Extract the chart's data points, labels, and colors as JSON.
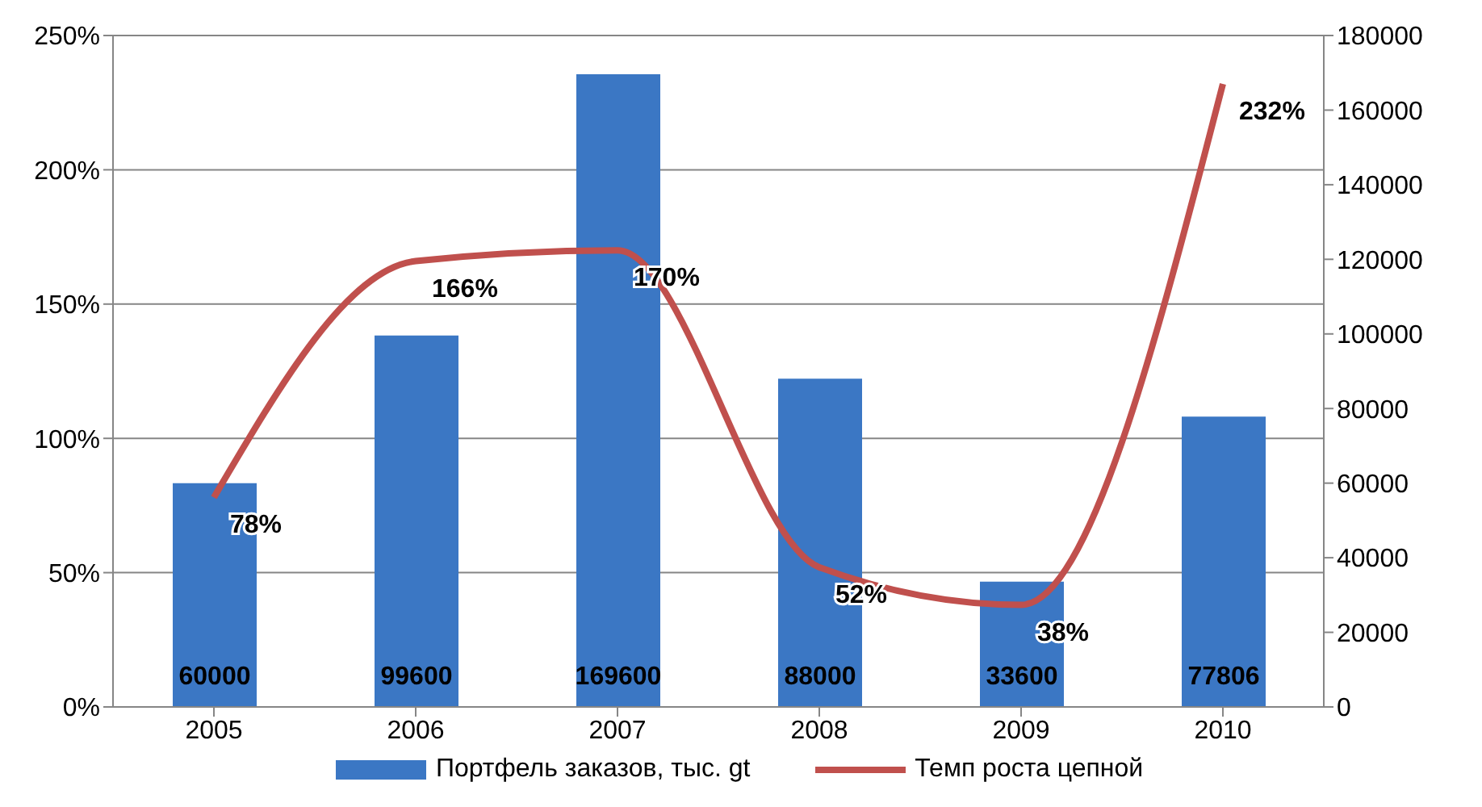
{
  "chart_data": {
    "type": "bar",
    "categories": [
      "2005",
      "2006",
      "2007",
      "2008",
      "2009",
      "2010"
    ],
    "series": [
      {
        "name": "Портфель заказов, тыс. gt",
        "color": "#3b77c4",
        "axis": "y2",
        "values": [
          60000,
          99600,
          169600,
          88000,
          33600,
          77806
        ]
      },
      {
        "name": "Темп роста цепной",
        "type": "line",
        "color": "#c0504d",
        "axis": "y",
        "values": [
          78,
          166,
          170,
          52,
          38,
          232
        ],
        "value_labels": [
          "78%",
          "166%",
          "170%",
          "52%",
          "38%",
          "232%"
        ]
      }
    ],
    "ylim": [
      0,
      250
    ],
    "yticks": [
      {
        "value": 0,
        "label": "0%"
      },
      {
        "value": 50,
        "label": "50%"
      },
      {
        "value": 100,
        "label": "100%"
      },
      {
        "value": 150,
        "label": "150%"
      },
      {
        "value": 200,
        "label": "200%"
      },
      {
        "value": 250,
        "label": "250%"
      }
    ],
    "y2lim": [
      0,
      180000
    ],
    "y2ticks": [
      0,
      20000,
      40000,
      60000,
      80000,
      100000,
      120000,
      140000,
      160000,
      180000
    ],
    "data_labels": true,
    "grid": "y",
    "legend": "bottom",
    "marker": "none",
    "line_style": "solid"
  }
}
